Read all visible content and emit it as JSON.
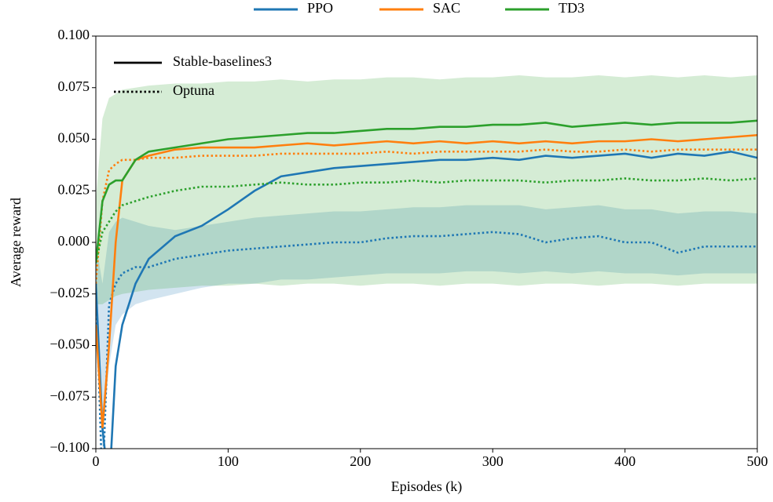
{
  "chart_data": {
    "type": "line",
    "x_label": "Episodes (k)",
    "y_label": "Average reward",
    "x": [
      0,
      5,
      10,
      15,
      20,
      30,
      40,
      60,
      80,
      100,
      120,
      140,
      160,
      180,
      200,
      220,
      240,
      260,
      280,
      300,
      320,
      340,
      360,
      380,
      400,
      420,
      440,
      460,
      480,
      500
    ],
    "xlim": [
      0,
      500
    ],
    "xticks": [
      0,
      100,
      200,
      300,
      400,
      500
    ],
    "ylim": [
      -0.1,
      0.1
    ],
    "yticks": [
      {
        "value": -0.1,
        "label": "−0.100"
      },
      {
        "value": -0.075,
        "label": "−0.075"
      },
      {
        "value": -0.05,
        "label": "−0.050"
      },
      {
        "value": -0.025,
        "label": "−0.025"
      },
      {
        "value": 0,
        "label": "0.000"
      },
      {
        "value": 0.025,
        "label": "0.025"
      },
      {
        "value": 0.05,
        "label": "0.050"
      },
      {
        "value": 0.075,
        "label": "0.075"
      },
      {
        "value": 0.1,
        "label": "0.100"
      }
    ],
    "line_styles": [
      {
        "name": "Stable-baselines3",
        "dash": "solid"
      },
      {
        "name": "Optuna",
        "dash": "dotted"
      }
    ],
    "series": [
      {
        "name": "PPO",
        "color": "#1f77b4",
        "values": [
          [
            -0.02,
            -0.09,
            -0.12,
            -0.06,
            -0.04,
            -0.02,
            -0.008,
            0.003,
            0.008,
            0.016,
            0.025,
            0.032,
            0.034,
            0.036,
            0.037,
            0.038,
            0.039,
            0.04,
            0.04,
            0.041,
            0.04,
            0.042,
            0.041,
            0.042,
            0.043,
            0.041,
            0.043,
            0.042,
            0.044,
            0.041
          ],
          [
            -0.02,
            -0.12,
            -0.03,
            -0.02,
            -0.015,
            -0.012,
            -0.012,
            -0.008,
            -0.006,
            -0.004,
            -0.003,
            -0.002,
            -0.001,
            0.0,
            0.0,
            0.002,
            0.003,
            0.003,
            0.004,
            0.005,
            0.004,
            0.0,
            0.002,
            0.003,
            0.0,
            0.0,
            -0.005,
            -0.002,
            -0.002,
            -0.002
          ]
        ],
        "bands": [
          null,
          {
            "lower": [
              -0.04,
              -0.1,
              -0.06,
              -0.04,
              -0.035,
              -0.03,
              -0.028,
              -0.025,
              -0.022,
              -0.02,
              -0.02,
              -0.018,
              -0.018,
              -0.017,
              -0.016,
              -0.015,
              -0.015,
              -0.015,
              -0.014,
              -0.014,
              -0.015,
              -0.014,
              -0.015,
              -0.014,
              -0.015,
              -0.015,
              -0.016,
              -0.015,
              -0.015,
              -0.015
            ],
            "upper": [
              0.0,
              -0.02,
              0.005,
              0.01,
              0.012,
              0.01,
              0.008,
              0.006,
              0.008,
              0.01,
              0.012,
              0.013,
              0.014,
              0.015,
              0.015,
              0.016,
              0.017,
              0.017,
              0.018,
              0.018,
              0.018,
              0.016,
              0.017,
              0.018,
              0.016,
              0.016,
              0.014,
              0.015,
              0.015,
              0.014
            ]
          }
        ]
      },
      {
        "name": "SAC",
        "color": "#ff7f0e",
        "values": [
          [
            -0.04,
            -0.09,
            -0.05,
            0.0,
            0.03,
            0.04,
            0.042,
            0.045,
            0.046,
            0.046,
            0.046,
            0.047,
            0.048,
            0.047,
            0.048,
            0.049,
            0.048,
            0.049,
            0.048,
            0.049,
            0.048,
            0.049,
            0.048,
            0.049,
            0.049,
            0.05,
            0.049,
            0.05,
            0.051,
            0.052
          ],
          [
            -0.02,
            0.02,
            0.035,
            0.038,
            0.04,
            0.04,
            0.041,
            0.041,
            0.042,
            0.042,
            0.042,
            0.043,
            0.043,
            0.043,
            0.043,
            0.044,
            0.043,
            0.044,
            0.044,
            0.044,
            0.044,
            0.045,
            0.044,
            0.044,
            0.045,
            0.044,
            0.045,
            0.045,
            0.045,
            0.045
          ]
        ],
        "bands": [
          null,
          null
        ]
      },
      {
        "name": "TD3",
        "color": "#2ca02c",
        "values": [
          [
            -0.01,
            0.02,
            0.028,
            0.03,
            0.03,
            0.04,
            0.044,
            0.046,
            0.048,
            0.05,
            0.051,
            0.052,
            0.053,
            0.053,
            0.054,
            0.055,
            0.055,
            0.056,
            0.056,
            0.057,
            0.057,
            0.058,
            0.056,
            0.057,
            0.058,
            0.057,
            0.058,
            0.058,
            0.058,
            0.059
          ],
          [
            -0.01,
            0.005,
            0.01,
            0.015,
            0.018,
            0.02,
            0.022,
            0.025,
            0.027,
            0.027,
            0.028,
            0.029,
            0.028,
            0.028,
            0.029,
            0.029,
            0.03,
            0.029,
            0.03,
            0.03,
            0.03,
            0.029,
            0.03,
            0.03,
            0.031,
            0.03,
            0.03,
            0.031,
            0.03,
            0.031
          ]
        ],
        "bands": [
          null,
          {
            "lower": [
              -0.03,
              -0.03,
              -0.028,
              -0.026,
              -0.025,
              -0.024,
              -0.023,
              -0.022,
              -0.021,
              -0.021,
              -0.02,
              -0.021,
              -0.02,
              -0.02,
              -0.021,
              -0.02,
              -0.02,
              -0.021,
              -0.02,
              -0.02,
              -0.021,
              -0.02,
              -0.02,
              -0.021,
              -0.02,
              -0.02,
              -0.021,
              -0.02,
              -0.02,
              -0.02
            ],
            "upper": [
              0.02,
              0.06,
              0.07,
              0.072,
              0.074,
              0.075,
              0.076,
              0.077,
              0.077,
              0.078,
              0.078,
              0.079,
              0.078,
              0.079,
              0.079,
              0.08,
              0.08,
              0.079,
              0.08,
              0.08,
              0.081,
              0.08,
              0.08,
              0.081,
              0.08,
              0.081,
              0.08,
              0.081,
              0.08,
              0.081
            ]
          }
        ]
      }
    ]
  }
}
